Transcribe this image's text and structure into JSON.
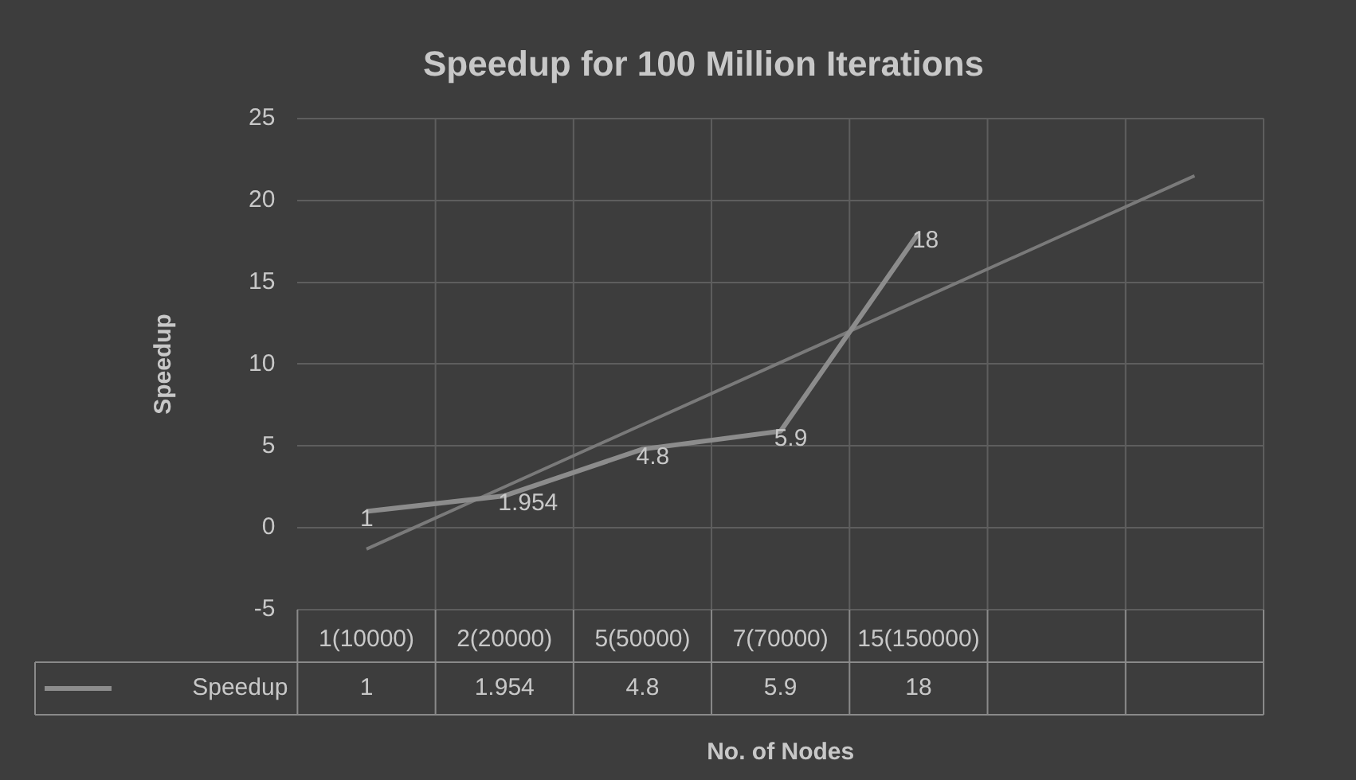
{
  "chart_data": {
    "type": "line",
    "title": "Speedup for 100 Million Iterations",
    "xlabel": "No. of Nodes",
    "ylabel": "Speedup",
    "categories": [
      "1(10000)",
      "2(20000)",
      "5(50000)",
      "7(70000)",
      "15(150000)",
      null,
      null
    ],
    "series": [
      {
        "name": "Speedup",
        "color": "#8c8c8c",
        "values": [
          1,
          1.954,
          4.8,
          5.9,
          18,
          null,
          null
        ],
        "value_labels": [
          "1",
          "1.954",
          "4.8",
          "5.9",
          "18",
          null,
          null
        ]
      },
      {
        "type": "line",
        "color": "#7a7a7a",
        "values": [
          -1.3,
          2.5,
          6.3,
          10.1,
          13.9,
          17.7,
          21.5
        ]
      }
    ],
    "ylim": [
      -5,
      25
    ],
    "yticks": [
      -5,
      0,
      5,
      10,
      15,
      20,
      25
    ],
    "grid": true,
    "legend": "bottom",
    "marker": "none"
  }
}
